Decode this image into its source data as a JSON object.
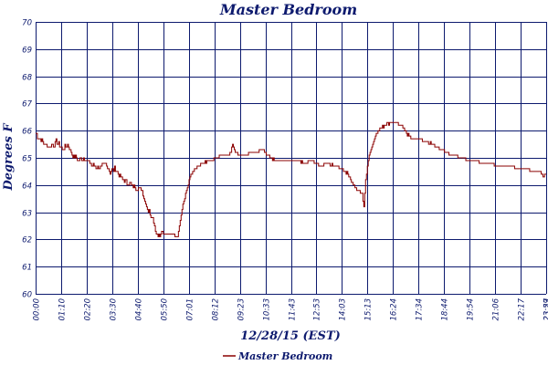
{
  "chart_data": {
    "type": "line",
    "title": "Master Bedroom",
    "xlabel": "12/28/15 (EST)",
    "ylabel": "Degrees F",
    "ylim": [
      60,
      70
    ],
    "yticks": [
      60,
      61,
      62,
      63,
      64,
      65,
      66,
      67,
      68,
      69,
      70
    ],
    "xticks": [
      "00:00",
      "01:10",
      "02:20",
      "03:30",
      "04:40",
      "05:50",
      "07:01",
      "08:12",
      "09:23",
      "10:33",
      "11:43",
      "12:53",
      "14:03",
      "15:13",
      "16:24",
      "17:34",
      "18:44",
      "19:54",
      "21:06",
      "22:17",
      "23:27",
      "23:59"
    ],
    "xlim_minutes": [
      0,
      1439
    ],
    "grid": true,
    "legend": "bottom-center",
    "series": [
      {
        "name": "Master Bedroom",
        "color": "#8b0000",
        "x_minutes": [
          0,
          10,
          25,
          40,
          60,
          75,
          90,
          105,
          120,
          135,
          150,
          165,
          180,
          195,
          210,
          225,
          240,
          255,
          270,
          285,
          300,
          315,
          330,
          340,
          350,
          355,
          360,
          370,
          385,
          400,
          410,
          415,
          425,
          435,
          450,
          470,
          490,
          510,
          520,
          530,
          540,
          550,
          555,
          560,
          570,
          580,
          590,
          600,
          620,
          640,
          660,
          680,
          700,
          720,
          740,
          760,
          780,
          800,
          820,
          840,
          860,
          880,
          900,
          920,
          925,
          930,
          935,
          940,
          950,
          960,
          970,
          985,
          1000,
          1015,
          1030,
          1045,
          1060,
          1080,
          1100,
          1120,
          1140,
          1160,
          1180,
          1200,
          1220,
          1240,
          1260,
          1280,
          1300,
          1320,
          1340,
          1360,
          1380,
          1400,
          1420,
          1430,
          1439
        ],
        "values": [
          65.9,
          65.7,
          65.5,
          65.4,
          65.6,
          65.3,
          65.5,
          65.1,
          64.9,
          65.0,
          64.8,
          64.7,
          64.6,
          64.8,
          64.5,
          64.6,
          64.3,
          64.1,
          64.0,
          63.9,
          63.8,
          63.1,
          62.8,
          62.2,
          62.1,
          62.3,
          62.2,
          62.2,
          62.2,
          62.1,
          62.9,
          63.3,
          63.8,
          64.3,
          64.6,
          64.8,
          64.9,
          65.0,
          65.1,
          65.1,
          65.1,
          65.2,
          65.5,
          65.3,
          65.1,
          65.1,
          65.1,
          65.2,
          65.2,
          65.3,
          65.0,
          64.9,
          64.9,
          64.9,
          64.9,
          64.8,
          64.9,
          64.7,
          64.8,
          64.7,
          64.6,
          64.4,
          63.9,
          63.7,
          63.2,
          64.2,
          64.7,
          65.1,
          65.5,
          65.9,
          66.1,
          66.2,
          66.3,
          66.3,
          66.2,
          65.9,
          65.7,
          65.7,
          65.6,
          65.5,
          65.3,
          65.2,
          65.1,
          65.0,
          64.9,
          64.9,
          64.8,
          64.8,
          64.7,
          64.7,
          64.7,
          64.6,
          64.6,
          64.5,
          64.5,
          64.3,
          64.4
        ]
      }
    ]
  }
}
